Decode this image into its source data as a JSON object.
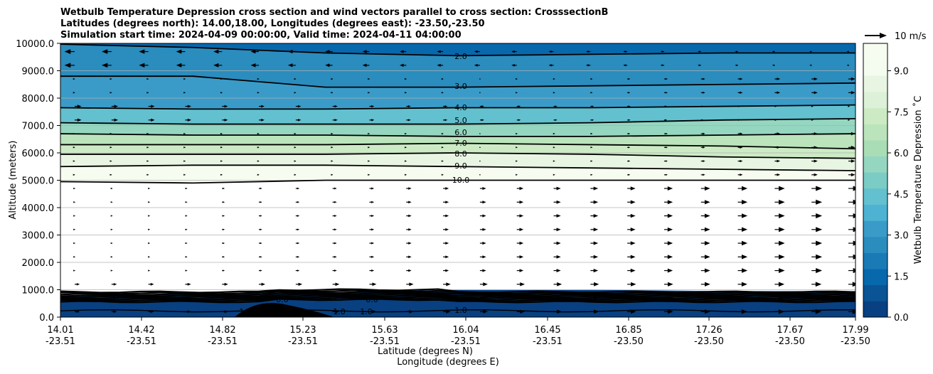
{
  "chart_data": {
    "type": "contour",
    "title_lines": [
      "Wetbulb Temperature Depression cross section and wind vectors parallel to cross section: CrosssectionB",
      "Latitudes (degrees north): 14.00,18.00, Longitudes (degrees east): -23.50,-23.50",
      "Simulation start time: 2024-04-09 00:00:00, Valid time: 2024-04-11 04:00:00"
    ],
    "ylabel": "Altitude (meters)",
    "xlabel_lat": "Latitude (degrees N)",
    "xlabel_lon": "Longitude (degrees E)",
    "ylim": [
      0,
      10000
    ],
    "yticks": [
      "0.0",
      "1000.0",
      "2000.0",
      "3000.0",
      "4000.0",
      "5000.0",
      "6000.0",
      "7000.0",
      "8000.0",
      "9000.0",
      "10000.0"
    ],
    "xticks_lat": [
      "14.01",
      "14.42",
      "14.82",
      "15.23",
      "15.63",
      "16.04",
      "16.45",
      "16.85",
      "17.26",
      "17.67",
      "17.99"
    ],
    "xticks_lon": [
      "-23.51",
      "-23.51",
      "-23.51",
      "-23.51",
      "-23.51",
      "-23.51",
      "-23.51",
      "-23.50",
      "-23.50",
      "-23.50",
      "-23.50"
    ],
    "colorbar": {
      "label": "Wetbulb Temperature Depression ˚C",
      "range": [
        0,
        10
      ],
      "ticks": [
        "0.0",
        "1.5",
        "3.0",
        "4.5",
        "6.0",
        "7.5",
        "9.0"
      ],
      "colors": [
        "#084081",
        "#0a5394",
        "#0868ac",
        "#1a7ab6",
        "#2b8cbe",
        "#3a9bc8",
        "#4eb3d3",
        "#63c0cf",
        "#7bccc4",
        "#95d6c0",
        "#a8ddb5",
        "#bbe4bc",
        "#ccebc5",
        "#dcf1d8",
        "#e8f5e3",
        "#f4fbef",
        "#f7fcf0"
      ]
    },
    "contour_labels": [
      "2.0",
      "3.0",
      "4.0",
      "5.0",
      "6.0",
      "7.0",
      "8.0",
      "9.0",
      "10.0",
      "1.0",
      "1.0",
      "1.0",
      "0.0",
      "0.0"
    ],
    "contour_levels": [
      {
        "level": 2.0,
        "altitude": [
          9970,
          9850,
          9650,
          9550,
          9600,
          9650,
          9650
        ]
      },
      {
        "level": 3.0,
        "altitude": [
          8800,
          8800,
          8400,
          8400,
          8450,
          8500,
          8550
        ]
      },
      {
        "level": 4.0,
        "altitude": [
          7650,
          7600,
          7600,
          7650,
          7650,
          7700,
          7750
        ]
      },
      {
        "level": 5.0,
        "altitude": [
          7100,
          7050,
          7050,
          7050,
          7100,
          7200,
          7250
        ]
      },
      {
        "level": 6.0,
        "altitude": [
          6700,
          6650,
          6650,
          6600,
          6600,
          6650,
          6700
        ]
      },
      {
        "level": 7.0,
        "altitude": [
          6300,
          6300,
          6300,
          6350,
          6300,
          6250,
          6150
        ]
      },
      {
        "level": 8.0,
        "altitude": [
          5950,
          5950,
          5950,
          6000,
          5950,
          5850,
          5800
        ]
      },
      {
        "level": 9.0,
        "altitude": [
          5500,
          5550,
          5550,
          5500,
          5450,
          5400,
          5350
        ]
      },
      {
        "level": 10.0,
        "altitude": [
          4950,
          4900,
          5000,
          5000,
          5000,
          5000,
          5000
        ]
      }
    ],
    "wind_key": "10 m/s",
    "wind_key_speed": 10
  }
}
